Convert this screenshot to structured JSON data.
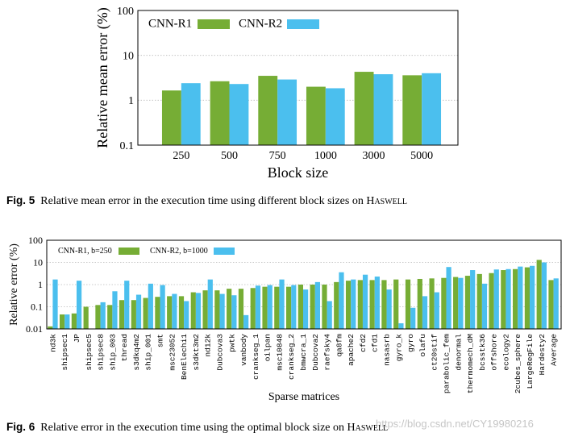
{
  "colors": {
    "r1": "#76ad35",
    "r2": "#4bbfee",
    "grid": "#bbbbbb"
  },
  "chart_data": [
    {
      "type": "bar",
      "title": "",
      "xlabel": "Block size",
      "ylabel": "Relative mean error (%)",
      "yscale": "log",
      "ylim": [
        0.1,
        100
      ],
      "yticks": [
        "0.1",
        "1",
        "10",
        "100"
      ],
      "legend": "top-left",
      "categories": [
        "250",
        "500",
        "750",
        "1000",
        "3000",
        "5000"
      ],
      "series": [
        {
          "name": "CNN-R1",
          "values": [
            1.65,
            2.65,
            3.5,
            2.0,
            4.3,
            3.6
          ]
        },
        {
          "name": "CNN-R2",
          "values": [
            2.4,
            2.3,
            2.9,
            1.85,
            3.8,
            4.0
          ]
        }
      ]
    },
    {
      "type": "bar",
      "title": "",
      "xlabel": "Sparse matrices",
      "ylabel": "Relative error (%)",
      "yscale": "log",
      "ylim": [
        0.01,
        100
      ],
      "yticks": [
        "0.01",
        "0.1",
        "1",
        "10",
        "100"
      ],
      "legend": "top-left",
      "categories": [
        "nd3k",
        "shipsec1",
        "JP",
        "shipsec5",
        "shipsec8",
        "ship_003",
        "thread",
        "s3dkq4m2",
        "ship_001",
        "smt",
        "msc23052",
        "BenElechi1",
        "s3dkt3m2",
        "nd12k",
        "Dubcova3",
        "pwtk",
        "vanbody",
        "crankseg_1",
        "oilpan",
        "msc10848",
        "crankseg_2",
        "bmwcra_1",
        "Dubcova2",
        "raefsky4",
        "qa8fm",
        "apache2",
        "cfd2",
        "cfd1",
        "nasasrb",
        "gyro_k",
        "gyro",
        "olafu",
        "ct20stif",
        "parabolic_fem",
        "denormal",
        "thermomech_dM",
        "bcsstk36",
        "offshore",
        "ecology2",
        "2cubes_sphere",
        "LargeRegFile",
        "Hardesty2",
        "Average"
      ],
      "series": [
        {
          "name": "CNN-R1, b=250",
          "values": [
            0.013,
            0.045,
            0.05,
            0.1,
            0.12,
            0.12,
            0.2,
            0.2,
            0.25,
            0.28,
            0.3,
            0.3,
            0.45,
            0.55,
            0.55,
            0.65,
            0.65,
            0.7,
            0.8,
            0.8,
            0.8,
            1.0,
            1.0,
            1.0,
            1.3,
            1.5,
            1.6,
            1.6,
            1.6,
            1.7,
            1.7,
            1.8,
            1.9,
            2.0,
            2.2,
            2.5,
            3.0,
            3.3,
            4.5,
            5.0,
            6.0,
            13.0,
            1.6
          ]
        },
        {
          "name": "CNN-R2, b=1000",
          "values": [
            1.7,
            0.045,
            1.5,
            0.01,
            0.16,
            0.5,
            1.5,
            0.35,
            1.1,
            0.95,
            0.38,
            0.18,
            0.42,
            1.7,
            0.38,
            0.33,
            0.042,
            0.9,
            0.95,
            1.7,
            0.95,
            0.6,
            1.3,
            0.18,
            3.6,
            1.7,
            2.8,
            2.3,
            0.6,
            0.018,
            0.09,
            0.3,
            0.45,
            6.2,
            2.0,
            4.5,
            1.1,
            4.8,
            5.0,
            6.5,
            7.0,
            10.0,
            1.9
          ]
        }
      ]
    }
  ],
  "captions": {
    "fig5": {
      "label": "Fig. 5",
      "text": "Relative mean error in the execution time using different block sizes on ",
      "sc": "Haswell"
    },
    "fig6": {
      "label": "Fig. 6",
      "text": "Relative error in the execution time using the optimal block size on ",
      "sc": "Haswell"
    }
  },
  "watermark": "https://blog.csdn.net/CY19980216"
}
